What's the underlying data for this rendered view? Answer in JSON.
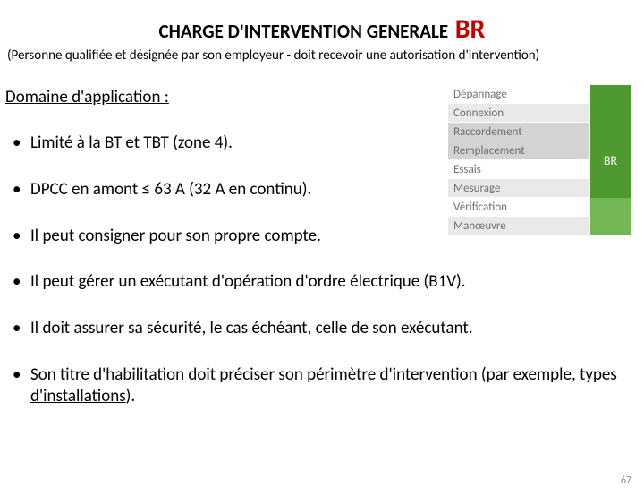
{
  "title": {
    "main": "CHARGE D'INTERVENTION GENERALE",
    "suffix": "BR",
    "suffix_color": "#c00000"
  },
  "subtitle": "(Personne qualifiée et désignée par son employeur - doit recevoir une autorisation d'intervention)",
  "section_heading": "Domaine d'application :",
  "bullets": [
    "Limité à la BT et TBT (zone 4).",
    "DPCC en amont ≤ 63 A (32 A en continu).",
    "Il peut consigner pour son propre compte.",
    "Il peut gérer un exécutant d'opération d'ordre électrique (B1V).",
    "Il doit assurer sa sécurité, le cas échéant, celle de son exécutant.",
    "Son titre d'habilitation doit préciser son périmètre d'intervention (par exemple, types d'installations)."
  ],
  "diagram": {
    "green_label": "BR",
    "green_color": "#4e9a2f",
    "green_light": "#74b855",
    "row_bg_alt": [
      "#ffffff",
      "#e9e9e9",
      "#d3d3d3"
    ],
    "label_color": "#6f6f6f",
    "rows": [
      {
        "label": "Dépannage",
        "shade": "white"
      },
      {
        "label": "Connexion",
        "shade": "grey"
      },
      {
        "label": "Raccordement",
        "shade": "dark"
      },
      {
        "label": "Remplacement",
        "shade": "dark"
      },
      {
        "label": "Essais",
        "shade": "white"
      },
      {
        "label": "Mesurage",
        "shade": "grey"
      },
      {
        "label": "Vérification",
        "shade": "white"
      },
      {
        "label": "Manœuvre",
        "shade": "grey"
      }
    ]
  },
  "page_number": "67",
  "colors": {
    "text": "#000000",
    "muted": "#8a8a8a",
    "background": "#ffffff"
  }
}
